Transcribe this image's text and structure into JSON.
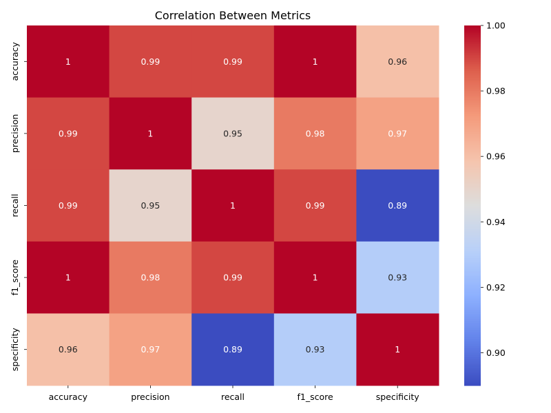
{
  "chart_data": {
    "type": "heatmap",
    "title": "Correlation Between Metrics",
    "x_labels": [
      "accuracy",
      "precision",
      "recall",
      "f1_score",
      "specificity"
    ],
    "y_labels": [
      "accuracy",
      "precision",
      "recall",
      "f1_score",
      "specificity"
    ],
    "values": [
      [
        1.0,
        0.99,
        0.99,
        1.0,
        0.96
      ],
      [
        0.99,
        1.0,
        0.95,
        0.98,
        0.97
      ],
      [
        0.99,
        0.95,
        1.0,
        0.99,
        0.89
      ],
      [
        1.0,
        0.98,
        0.99,
        1.0,
        0.93
      ],
      [
        0.96,
        0.97,
        0.89,
        0.93,
        1.0
      ]
    ],
    "annotations": [
      [
        "1",
        "0.99",
        "0.99",
        "1",
        "0.96"
      ],
      [
        "0.99",
        "1",
        "0.95",
        "0.98",
        "0.97"
      ],
      [
        "0.99",
        "0.95",
        "1",
        "0.99",
        "0.89"
      ],
      [
        "1",
        "0.98",
        "0.99",
        "1",
        "0.93"
      ],
      [
        "0.96",
        "0.97",
        "0.89",
        "0.93",
        "1"
      ]
    ],
    "colormap": "coolwarm",
    "colorbar": {
      "range": [
        0.89,
        1.0
      ],
      "ticks": [
        "0.90",
        "0.92",
        "0.94",
        "0.96",
        "0.98",
        "1.00"
      ]
    }
  }
}
